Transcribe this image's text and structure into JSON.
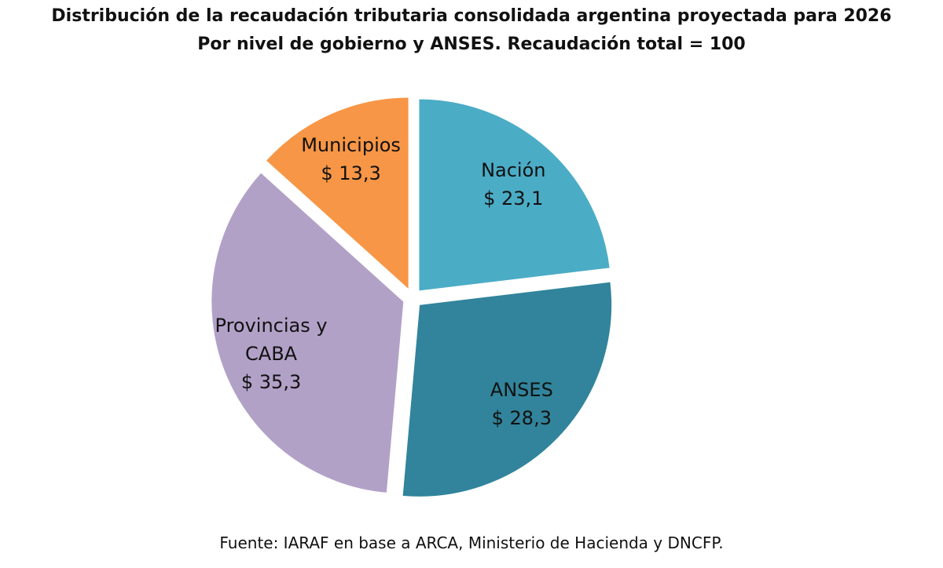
{
  "chart_data": {
    "type": "pie",
    "title": "Distribución de la recaudación tributaria consolidada argentina proyectada para 2026",
    "subtitle": "Por nivel de gobierno y ANSES. Recaudación total = 100",
    "categories": [
      "Nación",
      "ANSES",
      "Provincias y CABA",
      "Municipios"
    ],
    "values": [
      23.1,
      28.3,
      35.3,
      13.3
    ],
    "value_labels": [
      "$ 23,1",
      "$ 28,3",
      "$ 35,3",
      "$ 13,3"
    ],
    "colors": [
      "#4bacc6",
      "#31849b",
      "#b2a1c7",
      "#f79646"
    ],
    "note": "Fuente: IARAF en base a ARCA, Ministerio de Hacienda y DNCFP."
  }
}
